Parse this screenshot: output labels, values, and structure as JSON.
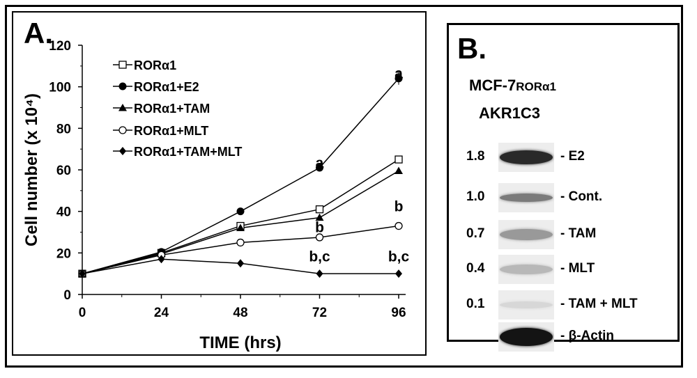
{
  "panel_a_label": "A.",
  "panel_b_label": "B.",
  "chart_data": {
    "type": "line",
    "title": "",
    "xlabel": "TIME (hrs)",
    "ylabel": "Cell number (x 10⁴)",
    "x": [
      0,
      24,
      48,
      72,
      96
    ],
    "xlim": [
      0,
      96
    ],
    "ylim": [
      0,
      120
    ],
    "x_ticks": [
      "0",
      "24",
      "48",
      "72",
      "96"
    ],
    "y_ticks": [
      "0",
      "20",
      "40",
      "60",
      "80",
      "100",
      "120"
    ],
    "grid": false,
    "legend": "upper-left",
    "series": [
      {
        "name": "RORα1",
        "marker": "open-square",
        "values": [
          10,
          20,
          33,
          41,
          65
        ]
      },
      {
        "name": "RORα1+E2",
        "marker": "filled-circle",
        "values": [
          10,
          20.5,
          40,
          61,
          104
        ]
      },
      {
        "name": "RORα1+TAM",
        "marker": "filled-triangle",
        "values": [
          10,
          19.5,
          32,
          37,
          59.5
        ]
      },
      {
        "name": "RORα1+MLT",
        "marker": "open-circle",
        "values": [
          10,
          19,
          25,
          27.5,
          33
        ]
      },
      {
        "name": "RORα1+TAM+MLT",
        "marker": "filled-diamond",
        "values": [
          10,
          17,
          15,
          10,
          10
        ]
      }
    ],
    "annotations": [
      {
        "text": "a",
        "x": 96,
        "y": 104
      },
      {
        "text": "a",
        "x": 72,
        "y": 61
      },
      {
        "text": "b",
        "x": 96,
        "y": 40
      },
      {
        "text": "b",
        "x": 72,
        "y": 30
      },
      {
        "text": "b,c",
        "x": 72,
        "y": 16
      },
      {
        "text": "b,c",
        "x": 96,
        "y": 16
      }
    ]
  },
  "blot": {
    "cell_line": "MCF-7",
    "cell_line_sub": "RORα1",
    "protein": "AKR1C3",
    "rows": [
      {
        "value": "1.8",
        "label": "- E2",
        "intensity": 1.8
      },
      {
        "value": "1.0",
        "label": "- Cont.",
        "intensity": 1.0
      },
      {
        "value": "0.7",
        "label": "- TAM",
        "intensity": 0.7
      },
      {
        "value": "0.4",
        "label": "- MLT",
        "intensity": 0.4
      },
      {
        "value": "0.1",
        "label": "- TAM + MLT",
        "intensity": 0.1
      },
      {
        "value": "",
        "label": "- β-Actin",
        "intensity": 3.0
      }
    ]
  }
}
